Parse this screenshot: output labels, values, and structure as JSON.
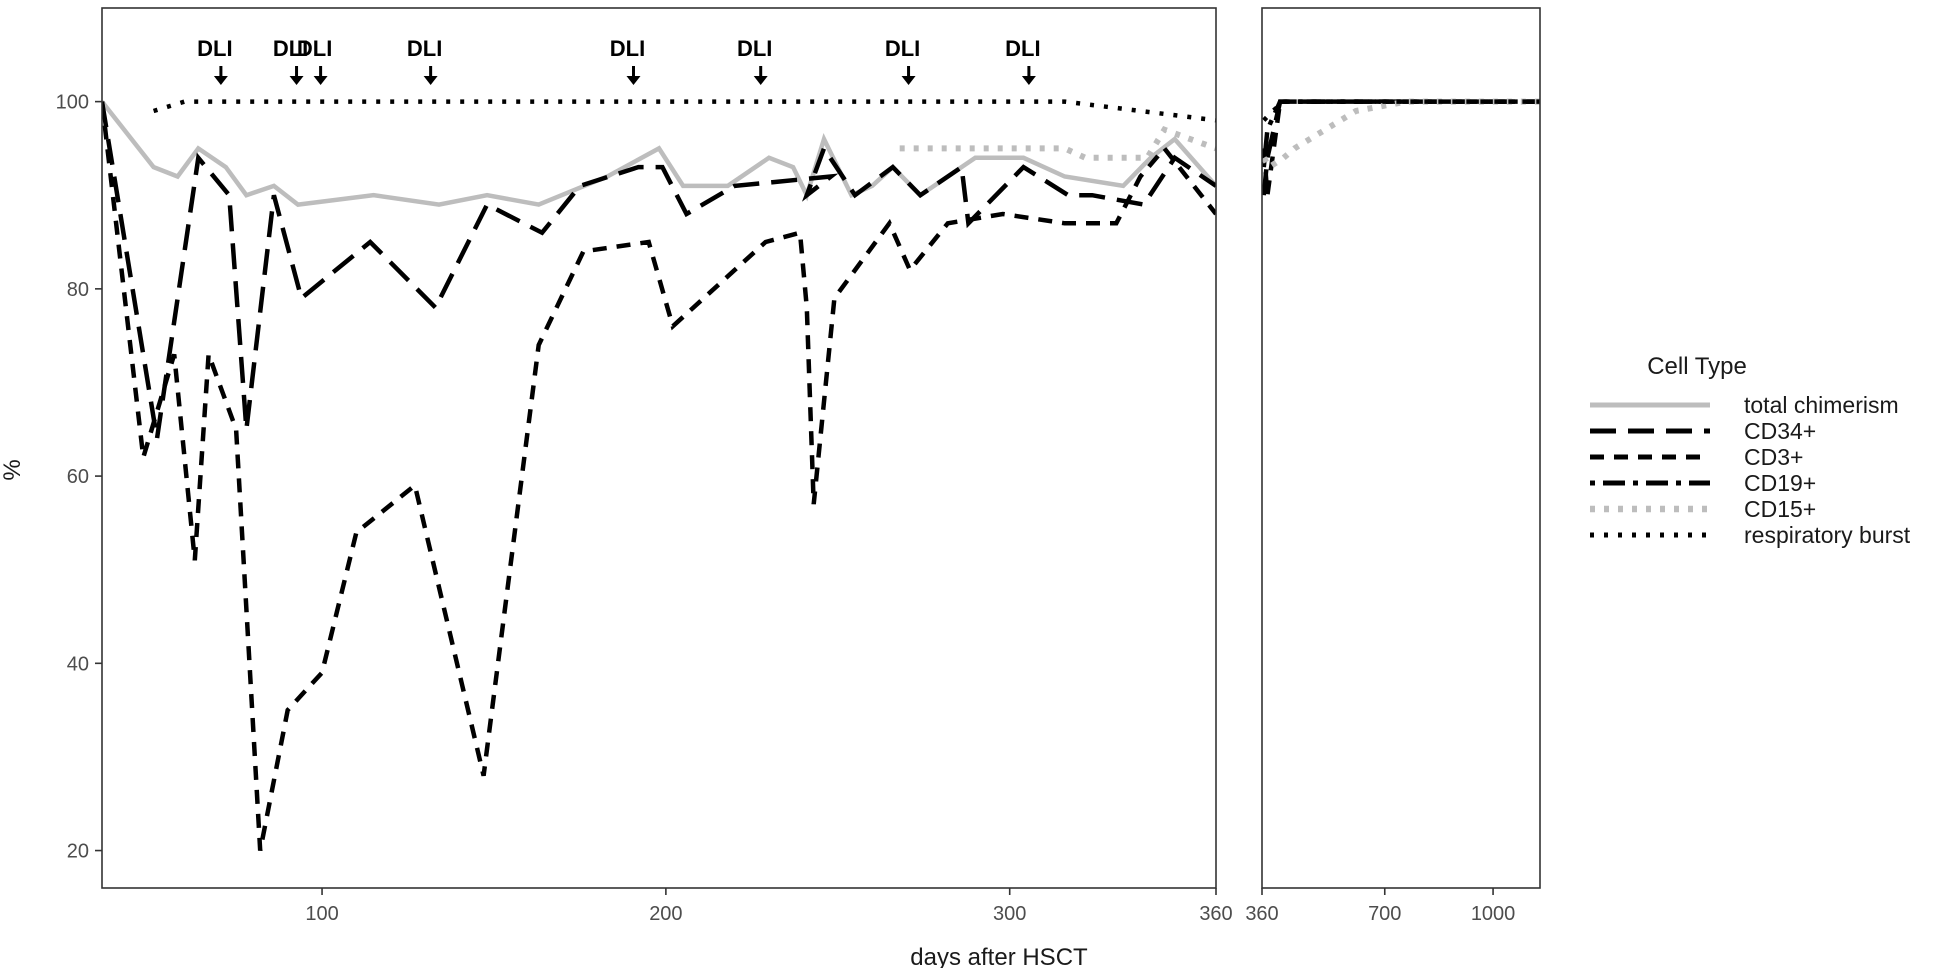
{
  "chart_data": {
    "type": "line",
    "xlabel": "days after HSCT",
    "ylabel": "%",
    "ylim": [
      16,
      110
    ],
    "y_ticks": [
      20,
      40,
      60,
      80,
      100
    ],
    "grid": false,
    "legend": {
      "title": "Cell Type",
      "placement": "right"
    },
    "annotations": [
      {
        "text": "DLI",
        "x": 70
      },
      {
        "text": "DLI",
        "x": 92
      },
      {
        "text": "DLI",
        "x": 99
      },
      {
        "text": "DLI",
        "x": 131
      },
      {
        "text": "DLI",
        "x": 190
      },
      {
        "text": "DLI",
        "x": 227
      },
      {
        "text": "DLI",
        "x": 270
      },
      {
        "text": "DLI",
        "x": 305
      }
    ],
    "panels": [
      {
        "xlim": [
          36,
          360
        ],
        "x_ticks": [
          100,
          200,
          300,
          360
        ],
        "series": [
          {
            "name": "total chimerism",
            "color": "#bdbdbd",
            "dash": "solid",
            "points": [
              [
                36,
                100
              ],
              [
                51,
                93
              ],
              [
                58,
                92
              ],
              [
                64,
                95
              ],
              [
                72,
                93
              ],
              [
                78,
                90
              ],
              [
                86,
                91
              ],
              [
                93,
                89
              ],
              [
                115,
                90
              ],
              [
                134,
                89
              ],
              [
                148,
                90
              ],
              [
                163,
                89
              ],
              [
                183,
                92
              ],
              [
                198,
                95
              ],
              [
                205,
                91
              ],
              [
                218,
                91
              ],
              [
                230,
                94
              ],
              [
                237,
                93
              ],
              [
                241,
                90
              ],
              [
                246,
                96
              ],
              [
                254,
                90
              ],
              [
                260,
                91
              ],
              [
                266,
                93
              ],
              [
                274,
                90
              ],
              [
                290,
                94
              ],
              [
                304,
                94
              ],
              [
                316,
                92
              ],
              [
                333,
                91
              ],
              [
                341,
                94
              ],
              [
                348,
                96
              ],
              [
                360,
                91
              ]
            ]
          },
          {
            "name": "CD34+",
            "color": "#000000",
            "dash": "longdash",
            "points": [
              [
                36,
                100
              ],
              [
                52,
                64
              ],
              [
                64,
                94
              ],
              [
                73,
                90
              ],
              [
                78,
                65
              ],
              [
                86,
                90
              ],
              [
                94,
                79
              ],
              [
                114,
                85
              ],
              [
                133,
                78
              ],
              [
                148,
                89
              ],
              [
                164,
                86
              ],
              [
                175,
                91
              ],
              [
                192,
                93
              ],
              [
                199,
                93
              ],
              [
                206,
                88
              ],
              [
                220,
                91
              ],
              [
                248,
                92
              ],
              [
                241,
                90
              ],
              [
                246,
                95
              ],
              [
                255,
                90
              ],
              [
                266,
                93
              ],
              [
                274,
                90
              ],
              [
                286,
                93
              ],
              [
                288,
                87
              ],
              [
                304,
                93
              ],
              [
                317,
                90
              ],
              [
                324,
                90
              ],
              [
                339,
                89
              ],
              [
                348,
                94
              ],
              [
                360,
                91
              ]
            ]
          },
          {
            "name": "CD3+",
            "color": "#000000",
            "dash": "dash",
            "points": [
              [
                36,
                100
              ],
              [
                48,
                62
              ],
              [
                57,
                73
              ],
              [
                63,
                51
              ],
              [
                67,
                73
              ],
              [
                75,
                65
              ],
              [
                82,
                20
              ],
              [
                90,
                35
              ],
              [
                100,
                39
              ],
              [
                110,
                54
              ],
              [
                127,
                59
              ],
              [
                147,
                28
              ],
              [
                163,
                74
              ],
              [
                176,
                84
              ],
              [
                195,
                85
              ],
              [
                202,
                76
              ],
              [
                220,
                82
              ],
              [
                229,
                85
              ],
              [
                239,
                86
              ],
              [
                241,
                78
              ],
              [
                243,
                57
              ],
              [
                249,
                79
              ],
              [
                265,
                87
              ],
              [
                271,
                82
              ],
              [
                282,
                87
              ],
              [
                298,
                88
              ],
              [
                316,
                87
              ],
              [
                327,
                87
              ],
              [
                331,
                87
              ],
              [
                338,
                92
              ],
              [
                345,
                95
              ],
              [
                360,
                88
              ]
            ]
          },
          {
            "name": "CD19+",
            "color": "#000000",
            "dash": "dotdash",
            "points": []
          },
          {
            "name": "CD15+",
            "color": "#bdbdbd",
            "dash": "dotted-thick",
            "points": [
              [
                268,
                95
              ],
              [
                306,
                95
              ],
              [
                316,
                95
              ],
              [
                322,
                94
              ],
              [
                334,
                94
              ],
              [
                340,
                94
              ],
              [
                345,
                97
              ],
              [
                360,
                95
              ]
            ]
          },
          {
            "name": "respiratory burst",
            "color": "#000000",
            "dash": "dotted",
            "points": [
              [
                51,
                99
              ],
              [
                60,
                100
              ],
              [
                300,
                100
              ],
              [
                316,
                100
              ],
              [
                360,
                98
              ]
            ]
          }
        ]
      },
      {
        "xlim": [
          360,
          1130
        ],
        "x_ticks": [
          360,
          700,
          1000
        ],
        "series": [
          {
            "name": "total chimerism",
            "color": "#bdbdbd",
            "dash": "solid",
            "points": []
          },
          {
            "name": "CD34+",
            "color": "#000000",
            "dash": "longdash",
            "points": [
              [
                365,
                90
              ],
              [
                375,
                94
              ],
              [
                410,
                100
              ],
              [
                1130,
                100
              ]
            ]
          },
          {
            "name": "CD3+",
            "color": "#000000",
            "dash": "dash",
            "points": [
              [
                365,
                95
              ],
              [
                375,
                90
              ],
              [
                410,
                100
              ],
              [
                1130,
                100
              ]
            ]
          },
          {
            "name": "CD19+",
            "color": "#000000",
            "dash": "dotdash",
            "points": [
              [
                365,
                93
              ],
              [
                375,
                97
              ],
              [
                410,
                100
              ],
              [
                1130,
                100
              ]
            ]
          },
          {
            "name": "CD15+",
            "color": "#bdbdbd",
            "dash": "dotted-thick",
            "points": [
              [
                365,
                94
              ],
              [
                380,
                93
              ],
              [
                420,
                94
              ],
              [
                450,
                95
              ],
              [
                620,
                99
              ],
              [
                760,
                100
              ],
              [
                1130,
                100
              ]
            ]
          },
          {
            "name": "respiratory burst",
            "color": "#000000",
            "dash": "dotted",
            "points": [
              [
                365,
                98
              ],
              [
                390,
                99
              ],
              [
                420,
                100
              ],
              [
                1130,
                100
              ]
            ]
          }
        ]
      }
    ]
  }
}
